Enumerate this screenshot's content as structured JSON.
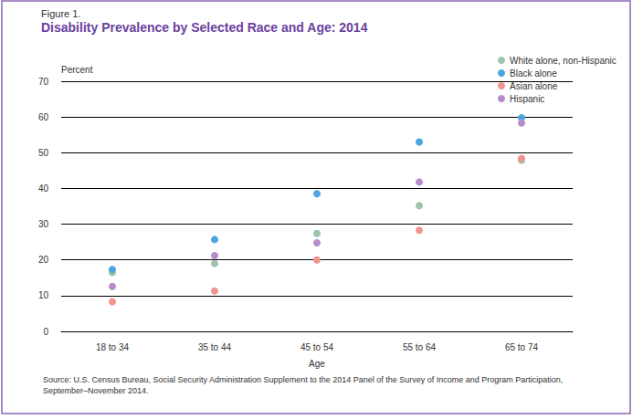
{
  "chart_data": {
    "type": "scatter",
    "figure_label": "Figure 1.",
    "title": "Disability Prevalence by Selected Race and Age: 2014",
    "x_label": "Age",
    "y_label": "Percent",
    "source": "Source: U.S. Census Bureau, Social Security Administration Supplement to the 2014 Panel of the Survey of Income and Program Participation, September–November 2014.",
    "categories": [
      "18 to 34",
      "35 to 44",
      "45 to 54",
      "55 to 64",
      "65 to 74"
    ],
    "series": [
      {
        "name": "White alone, non-Hispanic",
        "color": "#9cc4a9",
        "values": [
          16.5,
          19.0,
          27.4,
          35.2,
          47.9
        ]
      },
      {
        "name": "Black alone",
        "color": "#4ca5e0",
        "values": [
          17.3,
          25.7,
          38.5,
          53.0,
          59.8
        ]
      },
      {
        "name": "Asian alone",
        "color": "#f1948f",
        "values": [
          8.3,
          11.3,
          20.0,
          28.3,
          48.4
        ]
      },
      {
        "name": "Hispanic",
        "color": "#b68ccb",
        "values": [
          12.6,
          21.2,
          24.8,
          41.8,
          58.3
        ]
      }
    ],
    "ylim": [
      0,
      70
    ],
    "yticks": [
      0,
      10,
      20,
      30,
      40,
      50,
      60,
      70
    ],
    "grid": true,
    "legend": "top-right",
    "marker": "circle"
  }
}
